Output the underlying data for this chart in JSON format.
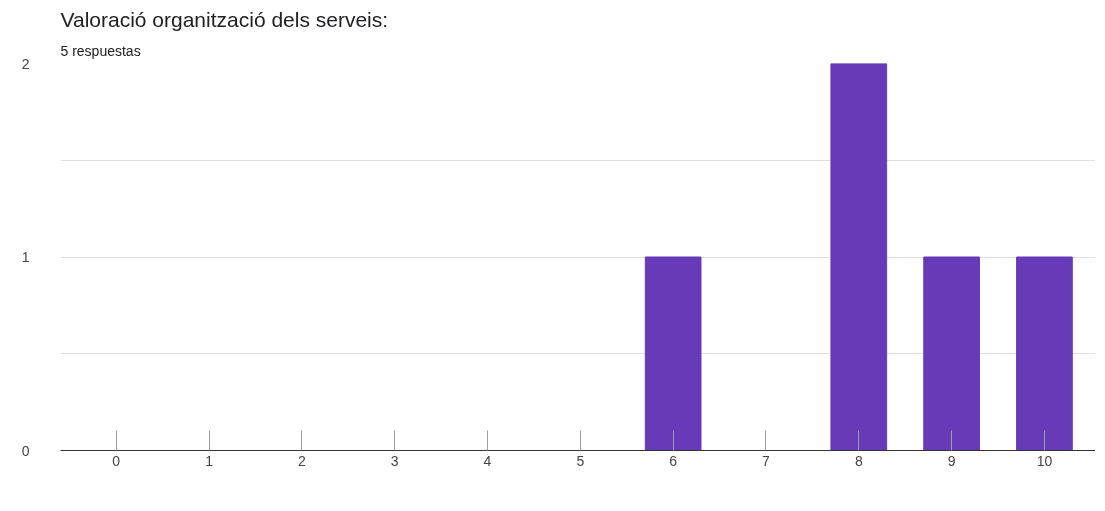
{
  "chart_data": {
    "type": "bar",
    "title": "Valoració organització dels serveis:",
    "subtitle": "5 respuestas",
    "categories": [
      "0",
      "1",
      "2",
      "3",
      "4",
      "5",
      "6",
      "7",
      "8",
      "9",
      "10"
    ],
    "values": [
      0,
      0,
      0,
      0,
      0,
      0,
      1,
      0,
      2,
      1,
      1
    ],
    "color": "#673ab7",
    "ylim": [
      0,
      2
    ],
    "yticks": [
      0,
      {
        "value": 0.5,
        "label": null
      },
      1,
      {
        "value": 1.5,
        "label": null
      },
      2
    ],
    "grid": "y"
  }
}
